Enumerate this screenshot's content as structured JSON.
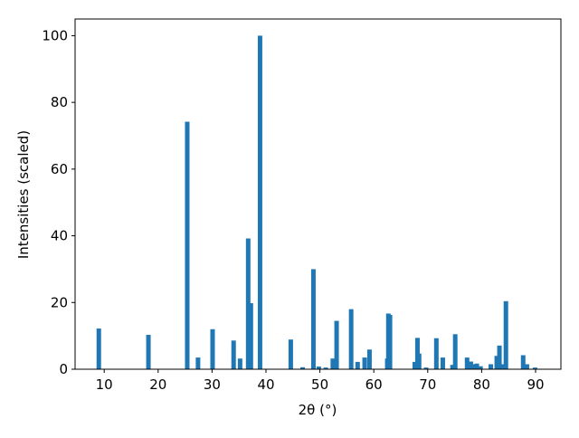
{
  "chart_data": {
    "type": "bar",
    "xlabel": "2θ (°)",
    "ylabel": "Intensities (scaled)",
    "color": "#1f77b4",
    "x": [
      9.0,
      18.2,
      25.4,
      27.4,
      30.1,
      34.0,
      35.2,
      36.7,
      37.2,
      38.9,
      44.6,
      46.8,
      48.8,
      49.8,
      51.1,
      52.4,
      53.1,
      55.8,
      57.0,
      58.3,
      59.2,
      62.5,
      62.7,
      63.0,
      67.6,
      68.1,
      68.4,
      69.7,
      71.6,
      72.8,
      74.6,
      75.1,
      77.3,
      78.0,
      78.6,
      79.1,
      79.8,
      81.7,
      82.8,
      83.3,
      83.8,
      84.5,
      87.7,
      88.4,
      89.9
    ],
    "values": [
      12.2,
      10.3,
      74.2,
      3.5,
      12,
      8.6,
      3.2,
      39.2,
      19.8,
      100,
      8.9,
      0.6,
      30,
      0.8,
      0.5,
      3.2,
      14.5,
      18,
      2.2,
      3.5,
      5.9,
      3.2,
      16.7,
      16.3,
      2.2,
      9.4,
      4.7,
      0.5,
      9.3,
      3.5,
      1.3,
      10.5,
      3.5,
      2.3,
      1.5,
      1.7,
      0.9,
      1.5,
      4,
      7.1,
      1.5,
      20.4,
      4.2,
      1.5,
      0.5
    ],
    "xlim": [
      4.6,
      94.7
    ],
    "ylim": [
      0,
      105
    ],
    "xticks": [
      10,
      20,
      30,
      40,
      50,
      60,
      70,
      80,
      90
    ],
    "yticks": [
      0,
      20,
      40,
      60,
      80,
      100
    ]
  }
}
